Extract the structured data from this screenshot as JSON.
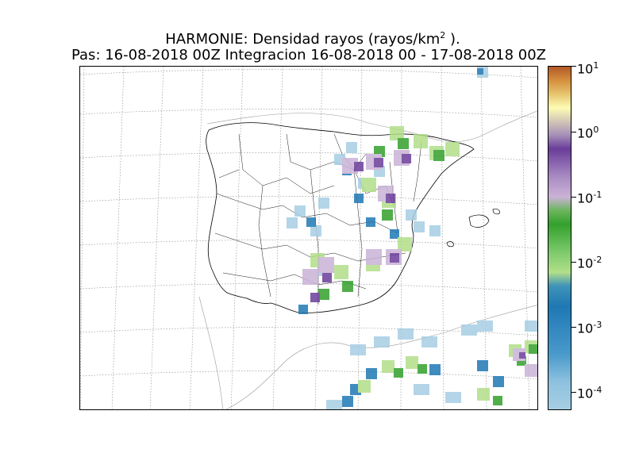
{
  "title": {
    "line1_prefix": "HARMONIE: Densidad rayos  (rayos/km",
    "line1_sup": "2",
    "line1_suffix": " ).",
    "line2": "Pas: 16-08-2018 00Z Integracion 16-08-2018 00 - 17-08-2018 00Z"
  },
  "colorbar": {
    "base": "10",
    "ticks": [
      {
        "exp": "1"
      },
      {
        "exp": "0"
      },
      {
        "exp": "-1"
      },
      {
        "exp": "-2"
      },
      {
        "exp": "-3"
      },
      {
        "exp": "-4"
      }
    ],
    "colors": {
      "low": "#a6cee3",
      "blue": "#1f78b4",
      "light_green": "#b2df8a",
      "green": "#33a02c",
      "light_purple": "#cab2d6",
      "purple": "#6a3d9a",
      "yellow": "#ffff99",
      "brown": "#b15928"
    }
  },
  "map": {
    "region": "Iberian Peninsula and Balearic Islands",
    "gridlines": "dotted",
    "coastlines": true,
    "borders": true
  }
}
